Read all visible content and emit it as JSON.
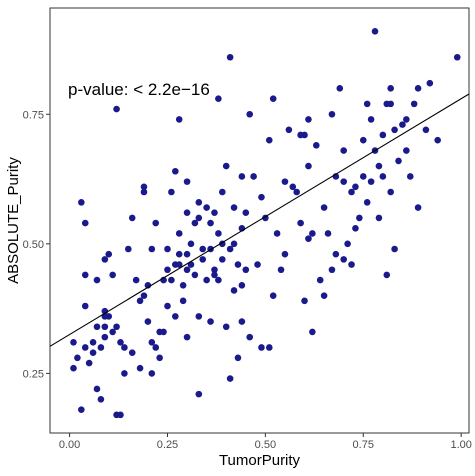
{
  "chart_data": {
    "type": "scatter",
    "xlabel": "TumorPurity",
    "ylabel": "ABSOLUTE_Purity",
    "annotation": "p-value: < 2.2e−16",
    "xlim": [
      -0.05,
      1.02
    ],
    "ylim": [
      0.135,
      0.955
    ],
    "x_ticks": [
      0.0,
      0.25,
      0.5,
      0.75,
      1.0
    ],
    "x_tick_labels": [
      "0.00",
      "0.25",
      "0.50",
      "0.75",
      "1.00"
    ],
    "y_ticks": [
      0.25,
      0.5,
      0.75
    ],
    "y_tick_labels": [
      "0.25",
      "0.50",
      "0.75"
    ],
    "grid": false,
    "point_color": "#1a1a8c",
    "line_color": "#000000",
    "regression": {
      "intercept": 0.325,
      "slope": 0.455
    },
    "points": [
      [
        0.01,
        0.31
      ],
      [
        0.01,
        0.26
      ],
      [
        0.02,
        0.28
      ],
      [
        0.03,
        0.18
      ],
      [
        0.03,
        0.58
      ],
      [
        0.04,
        0.54
      ],
      [
        0.04,
        0.44
      ],
      [
        0.04,
        0.38
      ],
      [
        0.04,
        0.3
      ],
      [
        0.05,
        0.27
      ],
      [
        0.06,
        0.31
      ],
      [
        0.06,
        0.29
      ],
      [
        0.07,
        0.34
      ],
      [
        0.07,
        0.22
      ],
      [
        0.07,
        0.43
      ],
      [
        0.08,
        0.2
      ],
      [
        0.08,
        0.3
      ],
      [
        0.09,
        0.32
      ],
      [
        0.09,
        0.36
      ],
      [
        0.09,
        0.37
      ],
      [
        0.09,
        0.34
      ],
      [
        0.09,
        0.47
      ],
      [
        0.1,
        0.36
      ],
      [
        0.1,
        0.48
      ],
      [
        0.11,
        0.44
      ],
      [
        0.11,
        0.33
      ],
      [
        0.12,
        0.76
      ],
      [
        0.12,
        0.17
      ],
      [
        0.12,
        0.34
      ],
      [
        0.13,
        0.17
      ],
      [
        0.13,
        0.31
      ],
      [
        0.14,
        0.25
      ],
      [
        0.14,
        0.3
      ],
      [
        0.15,
        0.49
      ],
      [
        0.16,
        0.29
      ],
      [
        0.16,
        0.55
      ],
      [
        0.17,
        0.43
      ],
      [
        0.18,
        0.26
      ],
      [
        0.18,
        0.39
      ],
      [
        0.19,
        0.4
      ],
      [
        0.19,
        0.6
      ],
      [
        0.19,
        0.61
      ],
      [
        0.2,
        0.35
      ],
      [
        0.2,
        0.42
      ],
      [
        0.21,
        0.25
      ],
      [
        0.21,
        0.31
      ],
      [
        0.21,
        0.49
      ],
      [
        0.22,
        0.54
      ],
      [
        0.22,
        0.3
      ],
      [
        0.23,
        0.33
      ],
      [
        0.23,
        0.28
      ],
      [
        0.24,
        0.33
      ],
      [
        0.24,
        0.43
      ],
      [
        0.25,
        0.49
      ],
      [
        0.25,
        0.38
      ],
      [
        0.25,
        0.45
      ],
      [
        0.26,
        0.6
      ],
      [
        0.26,
        0.43
      ],
      [
        0.27,
        0.46
      ],
      [
        0.27,
        0.36
      ],
      [
        0.27,
        0.64
      ],
      [
        0.28,
        0.48
      ],
      [
        0.28,
        0.52
      ],
      [
        0.28,
        0.46
      ],
      [
        0.28,
        0.74
      ],
      [
        0.29,
        0.39
      ],
      [
        0.29,
        0.42
      ],
      [
        0.3,
        0.62
      ],
      [
        0.3,
        0.56
      ],
      [
        0.3,
        0.45
      ],
      [
        0.3,
        0.32
      ],
      [
        0.3,
        0.48
      ],
      [
        0.31,
        0.5
      ],
      [
        0.31,
        0.46
      ],
      [
        0.32,
        0.54
      ],
      [
        0.32,
        0.44
      ],
      [
        0.33,
        0.55
      ],
      [
        0.33,
        0.58
      ],
      [
        0.33,
        0.36
      ],
      [
        0.33,
        0.21
      ],
      [
        0.34,
        0.47
      ],
      [
        0.34,
        0.49
      ],
      [
        0.35,
        0.57
      ],
      [
        0.35,
        0.43
      ],
      [
        0.36,
        0.49
      ],
      [
        0.36,
        0.35
      ],
      [
        0.36,
        0.54
      ],
      [
        0.37,
        0.45
      ],
      [
        0.37,
        0.56
      ],
      [
        0.37,
        0.44
      ],
      [
        0.38,
        0.52
      ],
      [
        0.38,
        0.43
      ],
      [
        0.38,
        0.78
      ],
      [
        0.39,
        0.6
      ],
      [
        0.39,
        0.47
      ],
      [
        0.39,
        0.5
      ],
      [
        0.4,
        0.65
      ],
      [
        0.4,
        0.34
      ],
      [
        0.41,
        0.49
      ],
      [
        0.41,
        0.86
      ],
      [
        0.41,
        0.24
      ],
      [
        0.42,
        0.41
      ],
      [
        0.42,
        0.57
      ],
      [
        0.42,
        0.5
      ],
      [
        0.43,
        0.28
      ],
      [
        0.43,
        0.46
      ],
      [
        0.44,
        0.53
      ],
      [
        0.44,
        0.42
      ],
      [
        0.44,
        0.35
      ],
      [
        0.44,
        0.63
      ],
      [
        0.45,
        0.56
      ],
      [
        0.45,
        0.45
      ],
      [
        0.46,
        0.75
      ],
      [
        0.46,
        0.32
      ],
      [
        0.47,
        0.63
      ],
      [
        0.48,
        0.46
      ],
      [
        0.49,
        0.3
      ],
      [
        0.49,
        0.59
      ],
      [
        0.5,
        0.55
      ],
      [
        0.51,
        0.7
      ],
      [
        0.51,
        0.3
      ],
      [
        0.52,
        0.4
      ],
      [
        0.52,
        0.78
      ],
      [
        0.53,
        0.52
      ],
      [
        0.54,
        0.45
      ],
      [
        0.55,
        0.62
      ],
      [
        0.55,
        0.48
      ],
      [
        0.56,
        0.72
      ],
      [
        0.57,
        0.61
      ],
      [
        0.58,
        0.6
      ],
      [
        0.59,
        0.71
      ],
      [
        0.59,
        0.54
      ],
      [
        0.6,
        0.71
      ],
      [
        0.6,
        0.39
      ],
      [
        0.61,
        0.74
      ],
      [
        0.61,
        0.51
      ],
      [
        0.61,
        0.65
      ],
      [
        0.62,
        0.52
      ],
      [
        0.62,
        0.33
      ],
      [
        0.63,
        0.69
      ],
      [
        0.64,
        0.43
      ],
      [
        0.65,
        0.57
      ],
      [
        0.65,
        0.4
      ],
      [
        0.66,
        0.52
      ],
      [
        0.67,
        0.75
      ],
      [
        0.67,
        0.45
      ],
      [
        0.68,
        0.63
      ],
      [
        0.68,
        0.48
      ],
      [
        0.69,
        0.8
      ],
      [
        0.7,
        0.62
      ],
      [
        0.7,
        0.68
      ],
      [
        0.7,
        0.47
      ],
      [
        0.71,
        0.5
      ],
      [
        0.72,
        0.46
      ],
      [
        0.72,
        0.6
      ],
      [
        0.73,
        0.53
      ],
      [
        0.73,
        0.61
      ],
      [
        0.74,
        0.55
      ],
      [
        0.75,
        0.7
      ],
      [
        0.75,
        0.63
      ],
      [
        0.76,
        0.77
      ],
      [
        0.76,
        0.58
      ],
      [
        0.77,
        0.62
      ],
      [
        0.77,
        0.74
      ],
      [
        0.78,
        0.91
      ],
      [
        0.78,
        0.68
      ],
      [
        0.79,
        0.65
      ],
      [
        0.79,
        0.55
      ],
      [
        0.8,
        0.63
      ],
      [
        0.8,
        0.71
      ],
      [
        0.81,
        0.44
      ],
      [
        0.81,
        0.77
      ],
      [
        0.82,
        0.6
      ],
      [
        0.82,
        0.77
      ],
      [
        0.82,
        0.8
      ],
      [
        0.83,
        0.49
      ],
      [
        0.83,
        0.72
      ],
      [
        0.84,
        0.66
      ],
      [
        0.85,
        0.73
      ],
      [
        0.86,
        0.74
      ],
      [
        0.86,
        0.68
      ],
      [
        0.87,
        0.63
      ],
      [
        0.88,
        0.77
      ],
      [
        0.89,
        0.57
      ],
      [
        0.89,
        0.8
      ],
      [
        0.91,
        0.72
      ],
      [
        0.92,
        0.81
      ],
      [
        0.94,
        0.7
      ],
      [
        0.99,
        0.86
      ]
    ]
  }
}
